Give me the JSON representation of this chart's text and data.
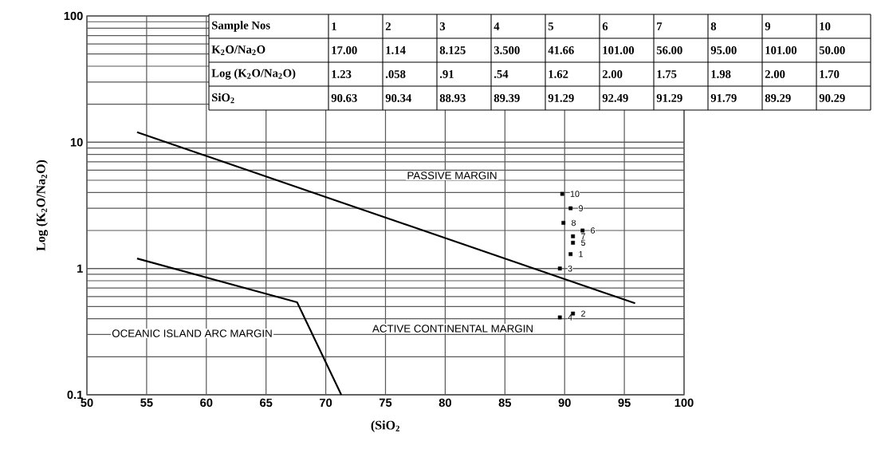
{
  "chart_data": {
    "type": "scatter",
    "xlabel": "(SiO$_{2}$",
    "ylabel": "Log (K$_{2}$O/Na$_{2}$O)",
    "xlim": [
      50,
      100
    ],
    "xticks": [
      50,
      55,
      60,
      65,
      70,
      75,
      80,
      85,
      90,
      95,
      100
    ],
    "ylim": [
      0.1,
      100
    ],
    "yticks": [
      0.1,
      1,
      10,
      100
    ],
    "log": "y",
    "grid": true,
    "series": [
      {
        "marker": "square",
        "color": "#000000",
        "x": [
          90.5,
          90.7,
          89.6,
          89.6,
          90.7,
          91.5,
          90.7,
          89.9,
          90.5,
          89.8
        ],
        "values": [
          1.3,
          0.44,
          1.0,
          0.41,
          1.6,
          2.0,
          1.8,
          2.3,
          3.0,
          3.9
        ]
      },
      {
        "type": "line",
        "color": "#000000",
        "x": [
          54.2,
          95.9
        ],
        "values": [
          12,
          0.53
        ]
      },
      {
        "type": "line",
        "color": "#000000",
        "x": [
          54.2,
          67.6,
          71.3
        ],
        "values": [
          1.2,
          0.54,
          0.1
        ]
      }
    ],
    "annotations": [
      "PASSIVE MARGIN",
      "ACTIVE CONTINENTAL MARGIN",
      "OCEANIC ISLAND ARC  MARGIN",
      {
        "text": "1",
        "x": 90.5,
        "y": 1.3
      },
      {
        "text": "2",
        "x": 90.7,
        "y": 0.44
      },
      {
        "text": "3",
        "x": 89.6,
        "y": 1.0
      },
      {
        "text": "4",
        "x": 89.6,
        "y": 0.41
      },
      {
        "text": "5",
        "x": 90.7,
        "y": 1.6
      },
      {
        "text": "6",
        "x": 91.5,
        "y": 2.0
      },
      {
        "text": "7",
        "x": 90.7,
        "y": 1.8
      },
      {
        "text": "8",
        "x": 89.9,
        "y": 2.3
      },
      {
        "text": "9",
        "x": 90.5,
        "y": 3.0
      },
      {
        "text": "10",
        "x": 89.8,
        "y": 3.9
      },
      "Sample Nos",
      "1",
      "2",
      "3",
      "4",
      "5",
      "6",
      "7",
      "8",
      "9",
      "10",
      "K$_{2}$O/Na$_{2}$O",
      "17.00",
      "1.14",
      "8.125",
      "3.500",
      "41.66",
      "101.00",
      "56.00",
      "95.00",
      "101.00",
      "50.00",
      "Log (K$_{2}$O/Na$_{2}$O)",
      "1.23",
      ".058",
      ".91",
      ".54",
      "1.62",
      "2.00",
      "1.75",
      "1.98",
      "2.00",
      "1.70",
      "SiO$_{2}$",
      "90.63",
      "90.34",
      "88.93",
      "89.39",
      "91.29",
      "92.49",
      "91.29",
      "91.79",
      "89.29",
      "90.29"
    ]
  }
}
